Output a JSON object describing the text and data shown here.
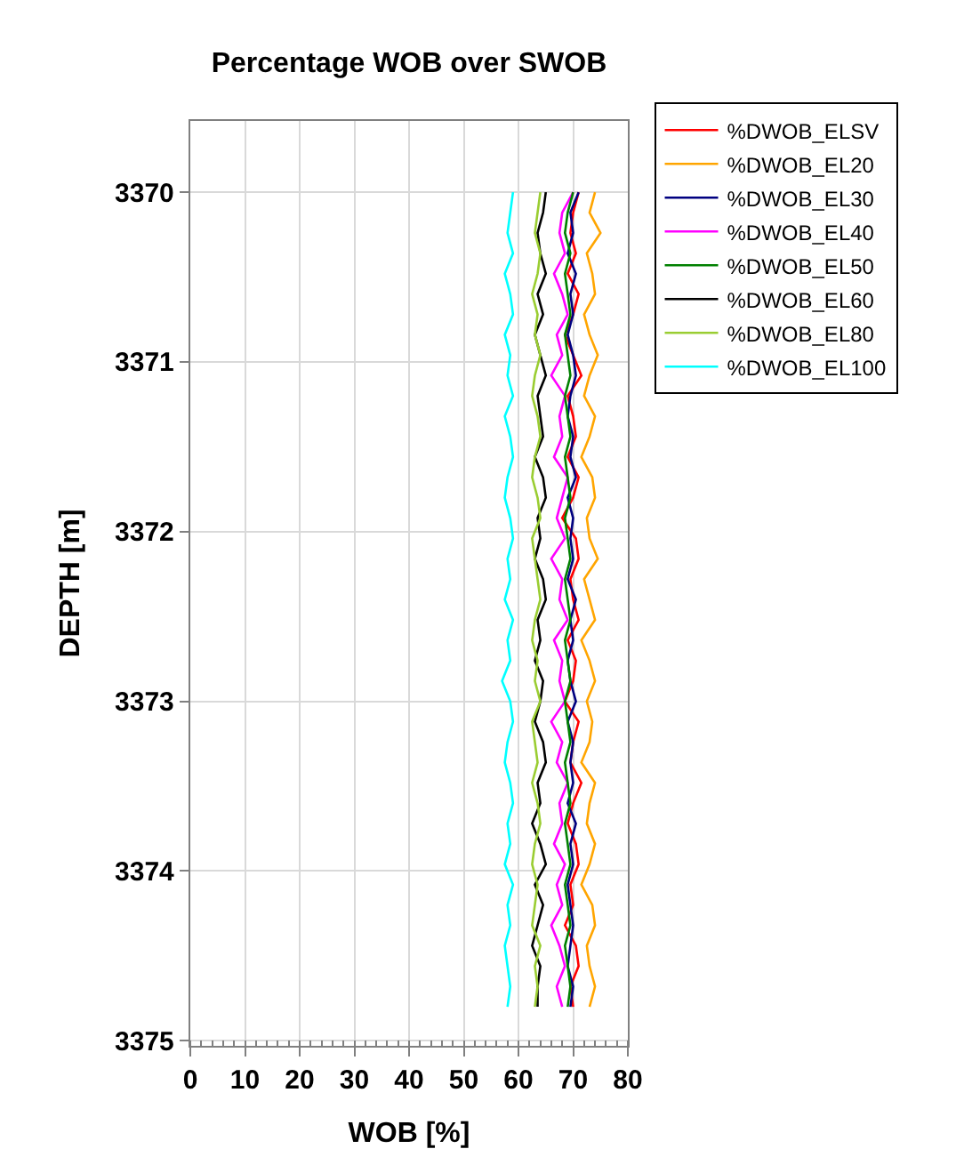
{
  "chart_data": {
    "type": "line",
    "title": "Percentage WOB over SWOB",
    "xlabel": "WOB [%]",
    "ylabel": "DEPTH [m]",
    "orientation": "horizontal",
    "x": [
      3370.0,
      3370.12,
      3370.24,
      3370.36,
      3370.48,
      3370.6,
      3370.72,
      3370.84,
      3370.96,
      3371.08,
      3371.2,
      3371.32,
      3371.44,
      3371.56,
      3371.68,
      3371.8,
      3371.92,
      3372.04,
      3372.16,
      3372.28,
      3372.4,
      3372.52,
      3372.64,
      3372.76,
      3372.88,
      3373.0,
      3373.12,
      3373.24,
      3373.36,
      3373.48,
      3373.6,
      3373.72,
      3373.84,
      3373.96,
      3374.08,
      3374.2,
      3374.32,
      3374.44,
      3374.56,
      3374.68,
      3374.8
    ],
    "xlim": [
      0,
      80
    ],
    "xticks": [
      0,
      10,
      20,
      30,
      40,
      50,
      60,
      70,
      80
    ],
    "ylim": [
      3375.03,
      3369.58
    ],
    "yticks": [
      3370,
      3371,
      3372,
      3373,
      3374,
      3375
    ],
    "grid": true,
    "legend": "top right",
    "marker": "none",
    "line_style": "solid",
    "series": [
      {
        "name": "%DWOB_ELSV",
        "color": "#ff0000",
        "values": [
          71,
          70,
          69.5,
          70.5,
          69,
          71,
          70,
          68.5,
          70,
          71.5,
          69,
          70,
          70.5,
          69,
          71,
          70,
          68,
          70.5,
          71,
          69.5,
          70,
          71,
          69,
          70.5,
          70,
          68.5,
          71,
          70,
          69.5,
          71.5,
          70,
          69,
          70.5,
          71,
          69.5,
          70,
          68.5,
          70.5,
          71,
          69.5,
          70
        ]
      },
      {
        "name": "%DWOB_EL20",
        "color": "#ffa500",
        "values": [
          74,
          73,
          75,
          72.5,
          73.5,
          74,
          72,
          73,
          74.5,
          73,
          72,
          74,
          73,
          71.5,
          73.5,
          74,
          72.5,
          73,
          74.5,
          72,
          73,
          74,
          71.5,
          73,
          74,
          72.5,
          73.5,
          73,
          71.5,
          74,
          73,
          72.5,
          74,
          73,
          71.5,
          73.5,
          74,
          72.5,
          73,
          74,
          73
        ]
      },
      {
        "name": "%DWOB_EL30",
        "color": "#000080",
        "values": [
          71,
          69.5,
          70,
          69,
          70.5,
          69.5,
          70,
          69,
          70,
          70.5,
          69.5,
          69,
          70,
          69.5,
          70.5,
          69,
          70,
          69.5,
          70,
          69,
          70.5,
          69.5,
          70,
          69,
          69.5,
          70.5,
          69,
          70,
          69.5,
          70,
          69,
          70.5,
          69.5,
          70,
          69,
          69.5,
          70,
          69.5,
          69,
          70,
          69.5
        ]
      },
      {
        "name": "%DWOB_EL40",
        "color": "#ff00ff",
        "values": [
          70,
          68,
          67.5,
          68.5,
          66.5,
          68,
          69,
          67,
          68,
          66,
          68.5,
          67.5,
          68,
          66.5,
          69,
          68,
          67,
          68.5,
          66,
          68,
          67.5,
          69,
          66.5,
          68,
          67.5,
          68.5,
          66,
          68,
          67,
          69,
          67.5,
          68,
          66.5,
          68.5,
          67,
          68,
          66,
          67.5,
          68.5,
          67,
          68
        ]
      },
      {
        "name": "%DWOB_EL50",
        "color": "#008000",
        "values": [
          70,
          69,
          68.5,
          69.5,
          68.5,
          69,
          69.5,
          68.5,
          69,
          69.5,
          68.5,
          69,
          69.5,
          68.5,
          69,
          69.5,
          68.5,
          69,
          69.5,
          68.5,
          69,
          69.5,
          68.5,
          69,
          69.5,
          68.5,
          69,
          69.5,
          68.5,
          69,
          69.5,
          68.5,
          69,
          69.5,
          68.5,
          69,
          69.5,
          68.5,
          69,
          69.5,
          69
        ]
      },
      {
        "name": "%DWOB_EL60",
        "color": "#000000",
        "values": [
          65,
          64.5,
          63.5,
          64,
          65,
          63.5,
          64.5,
          63,
          64,
          65,
          63.5,
          64,
          64.5,
          63,
          64.5,
          65,
          63.5,
          64,
          63,
          64.5,
          65,
          63.5,
          64,
          63,
          64.5,
          64,
          63,
          64.5,
          65,
          63.5,
          64,
          62.5,
          64,
          65,
          63,
          64.5,
          63.5,
          62.5,
          64,
          63.5,
          63.5
        ]
      },
      {
        "name": "%DWOB_EL80",
        "color": "#9acd32",
        "values": [
          64,
          63.5,
          63,
          64,
          63.5,
          62.5,
          63.5,
          63,
          64,
          63,
          62.5,
          63.5,
          64,
          63,
          62.5,
          63.5,
          64,
          62.5,
          63,
          63.5,
          64,
          63,
          62.5,
          63.5,
          63,
          64,
          62.5,
          63,
          63.5,
          62.5,
          63.5,
          64,
          63,
          62.5,
          63.5,
          63,
          62.5,
          64,
          63,
          63.5,
          63
        ]
      },
      {
        "name": "%DWOB_EL100",
        "color": "#00ffff",
        "values": [
          59,
          58.5,
          58,
          59,
          57.5,
          58.5,
          59,
          57.5,
          58.5,
          58,
          59,
          57.5,
          58.5,
          59,
          58,
          57.5,
          58.5,
          59,
          58,
          58.5,
          57.5,
          59,
          58,
          58.5,
          57,
          58.5,
          59,
          58,
          57.5,
          58.5,
          59,
          58,
          58.5,
          57.5,
          59,
          58,
          58.5,
          57.5,
          58,
          58.5,
          58
        ]
      }
    ]
  }
}
